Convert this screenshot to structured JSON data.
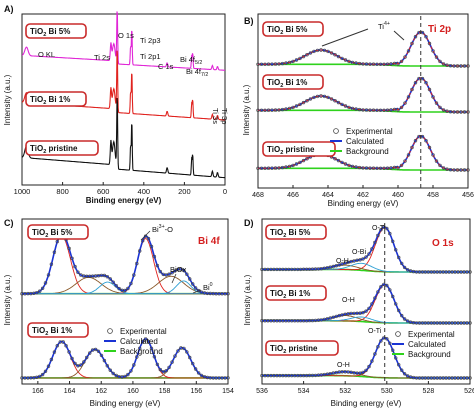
{
  "chart_data": [
    {
      "type": "line",
      "panel": "A)",
      "xlabel": "Binding energy (eV)",
      "ylabel": "Intensity (a.u.)",
      "xlim": [
        1000,
        0
      ],
      "xticks": [
        1000,
        800,
        600,
        400,
        200,
        0
      ],
      "colors": [
        "#e026d6",
        "#e0231f",
        "#111111"
      ],
      "series": [
        {
          "name": "TiO2 Bi 5%",
          "label_main": "TiO",
          "label_sub": "2",
          "label_rest": " Bi 5%",
          "color": "#e026d6"
        },
        {
          "name": "TiO2 Bi 1%",
          "label_main": "TiO",
          "label_sub": "2",
          "label_rest": " Bi 1%",
          "color": "#e0231f"
        },
        {
          "name": "TiO2 pristine",
          "label_main": "TiO",
          "label_sub": "2",
          "label_rest": " pristine",
          "color": "#111111"
        }
      ],
      "annotations": [
        "O KL",
        "O 1s",
        "Ti 2s",
        "Ti 2p3",
        "Ti 2p1",
        "C 1s",
        "Bi 4f5/2",
        "Bi 4f7/2",
        "Ti 3s",
        "Ti 3p"
      ]
    },
    {
      "type": "line",
      "panel": "B)",
      "title": "Ti 2p",
      "xlabel": "Binding energy (eV)",
      "ylabel": "Intensity (a.u.)",
      "xlim": [
        468,
        456
      ],
      "xticks": [
        468,
        466,
        464,
        462,
        460,
        458,
        456
      ],
      "peak_positions": [
        464.4,
        458.7
      ],
      "samples": [
        "TiO2 Bi 5%",
        "TiO2 Bi 1%",
        "TiO2 pristine"
      ],
      "legend": [
        "Experimental",
        "Calculated",
        "Background"
      ],
      "annotations": [
        "Ti4+"
      ]
    },
    {
      "type": "line",
      "panel": "C)",
      "title": "Bi 4f",
      "xlabel": "Binding energy (eV)",
      "ylabel": "Intensity (a.u.)",
      "xlim": [
        167,
        154
      ],
      "xticks": [
        166,
        164,
        162,
        160,
        158,
        156,
        154
      ],
      "peak_positions": [
        164.5,
        162.8,
        159.2,
        157.6,
        156.8
      ],
      "samples": [
        "TiO2 Bi 5%",
        "TiO2 Bi 1%"
      ],
      "legend": [
        "Experimental",
        "Calculated",
        "Background"
      ],
      "annotations": [
        "Bi3+-O",
        "BiOx",
        "Bi0"
      ]
    },
    {
      "type": "line",
      "panel": "D)",
      "title": "O 1s",
      "xlabel": "Binding energy (eV)",
      "ylabel": "Intensity (a.u.)",
      "xlim": [
        536,
        526
      ],
      "xticks": [
        536,
        534,
        532,
        530,
        528,
        526
      ],
      "peak_positions": [
        530.1,
        531.2,
        532.0
      ],
      "samples": [
        "TiO2 Bi 5%",
        "TiO2 Bi 1%",
        "TiO2 pristine"
      ],
      "legend": [
        "Experimental",
        "Calculated",
        "Background"
      ],
      "annotations": [
        "O-Ti",
        "O-Bi",
        "O-H"
      ]
    }
  ]
}
